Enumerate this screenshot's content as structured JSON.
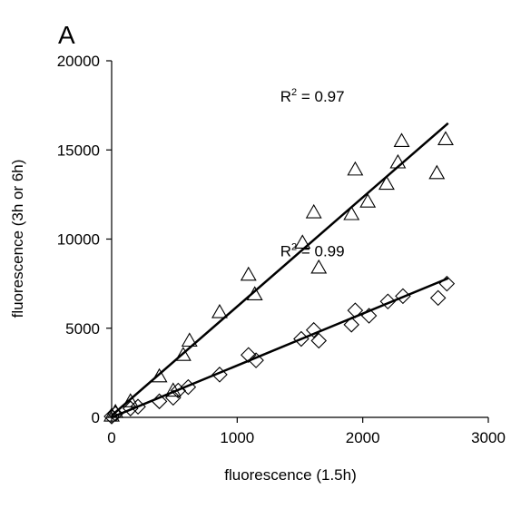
{
  "panel_label": "A",
  "chart_data": {
    "type": "scatter",
    "xlabel": "fluorescence (1.5h)",
    "ylabel": "fluorescence (3h or 6h)",
    "xlim": [
      0,
      3000
    ],
    "ylim": [
      0,
      20000
    ],
    "x_ticks": [
      0,
      1000,
      2000,
      3000
    ],
    "y_ticks": [
      0,
      5000,
      10000,
      15000,
      20000
    ],
    "x_tick_labels": [
      "0",
      "1000",
      "2000",
      "3000"
    ],
    "y_tick_labels": [
      "0",
      "5000",
      "10000",
      "15000",
      "20000"
    ],
    "grid": false,
    "legend": "none",
    "series": [
      {
        "marker": "triangle",
        "color": "#000000",
        "points": [
          [
            0,
            100
          ],
          [
            30,
            300
          ],
          [
            150,
            900
          ],
          [
            380,
            2300
          ],
          [
            490,
            1500
          ],
          [
            570,
            3500
          ],
          [
            620,
            4300
          ],
          [
            860,
            5900
          ],
          [
            1090,
            8000
          ],
          [
            1140,
            6900
          ],
          [
            1520,
            9800
          ],
          [
            1610,
            11500
          ],
          [
            1650,
            8400
          ],
          [
            1910,
            11400
          ],
          [
            1940,
            13900
          ],
          [
            2040,
            12100
          ],
          [
            2190,
            13100
          ],
          [
            2280,
            14300
          ],
          [
            2310,
            15500
          ],
          [
            2590,
            13700
          ],
          [
            2660,
            15600
          ]
        ],
        "fit": {
          "x": [
            0,
            2680
          ],
          "y": [
            100,
            16500
          ]
        },
        "r2_text": "R",
        "r2_sup": "2",
        "r2_value": " = 0.97"
      },
      {
        "marker": "diamond",
        "color": "#000000",
        "points": [
          [
            0,
            50
          ],
          [
            30,
            200
          ],
          [
            150,
            500
          ],
          [
            210,
            600
          ],
          [
            380,
            900
          ],
          [
            490,
            1100
          ],
          [
            530,
            1500
          ],
          [
            610,
            1700
          ],
          [
            860,
            2400
          ],
          [
            1090,
            3500
          ],
          [
            1150,
            3200
          ],
          [
            1510,
            4400
          ],
          [
            1610,
            4900
          ],
          [
            1650,
            4300
          ],
          [
            1910,
            5200
          ],
          [
            1940,
            6000
          ],
          [
            2050,
            5700
          ],
          [
            2200,
            6500
          ],
          [
            2320,
            6800
          ],
          [
            2600,
            6700
          ],
          [
            2670,
            7500
          ]
        ],
        "fit": {
          "x": [
            0,
            2680
          ],
          "y": [
            0,
            7800
          ]
        },
        "r2_text": "R",
        "r2_sup": "2",
        "r2_value": " = 0.99"
      }
    ]
  }
}
